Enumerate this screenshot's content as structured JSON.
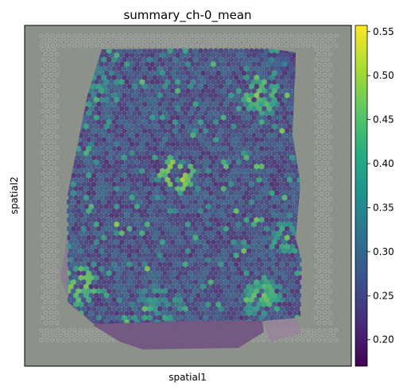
{
  "chart_data": {
    "type": "scatter",
    "subtype": "spatial spot plot over tissue image",
    "title": "summary_ch-0_mean",
    "xlabel": "spatial1",
    "ylabel": "spatial2",
    "axis_ticks_shown": false,
    "grid": false,
    "background": "H&E tissue image (grey slide, purple-stained tissue), fiducial dot frame",
    "colormap": {
      "name": "viridis",
      "vmin": 0.17,
      "vmax": 0.557,
      "ticks": [
        0.2,
        0.25,
        0.3,
        0.35,
        0.4,
        0.45,
        0.5,
        0.55
      ],
      "tick_labels": [
        "0.20",
        "0.25",
        "0.30",
        "0.35",
        "0.40",
        "0.45",
        "0.50",
        "0.55"
      ],
      "position": "right"
    },
    "value_distribution": {
      "typical_range": [
        0.2,
        0.3
      ],
      "high_value_regions": [
        "centre ring around a central hotspot",
        "upper-right tissue edge",
        "lower-left tissue edge",
        "lower-right tissue edge",
        "bottom-centre boundary"
      ]
    }
  },
  "colors": {
    "slide_background": "#8c918a",
    "tissue_tint": "#7a5c8a",
    "fiducial_dot": "#a3a3a3",
    "viridis_low": "#440154",
    "viridis_high": "#fde725"
  }
}
